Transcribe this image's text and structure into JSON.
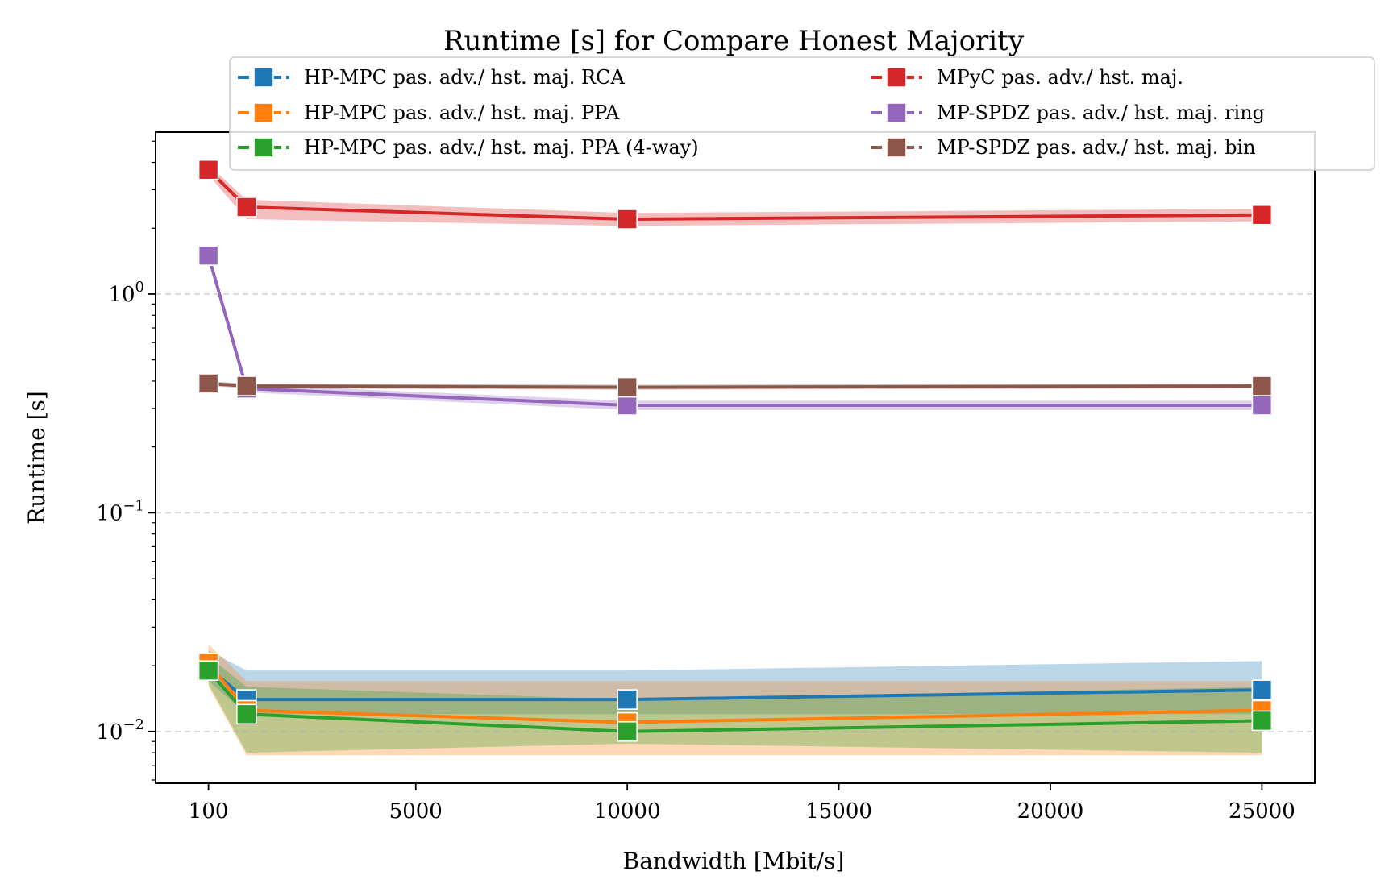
{
  "chart_data": {
    "type": "line",
    "title": "Runtime [s] for Compare Honest Majority",
    "xlabel": "Bandwidth [Mbit/s]",
    "ylabel": "Runtime [s]",
    "yscale": "log",
    "xlim": [
      -1150,
      26250
    ],
    "ylim": [
      0.0058,
      5.5
    ],
    "xticks": [
      100,
      5000,
      10000,
      15000,
      20000,
      25000
    ],
    "xtick_labels": [
      "100",
      "5000",
      "10000",
      "15000",
      "20000",
      "25000"
    ],
    "yticks": [
      0.01,
      0.1,
      1
    ],
    "ytick_labels": [
      {
        "base": "10",
        "exp": "−2"
      },
      {
        "base": "10",
        "exp": "−1"
      },
      {
        "base": "10",
        "exp": "0"
      }
    ],
    "grid": "y-major-dashed",
    "legend": "top, two columns",
    "x": [
      100,
      1000,
      10000,
      25000
    ],
    "series": [
      {
        "name": "HP-MPC pas. adv./ hst. maj. RCA",
        "color": "#1f77b4",
        "values": [
          0.0195,
          0.014,
          0.014,
          0.0155
        ],
        "lower": [
          0.017,
          0.012,
          0.012,
          0.012
        ],
        "upper": [
          0.0235,
          0.019,
          0.019,
          0.021
        ]
      },
      {
        "name": "HP-MPC pas. adv./ hst. maj. PPA",
        "color": "#ff7f0e",
        "values": [
          0.0205,
          0.0125,
          0.011,
          0.0125
        ],
        "lower": [
          0.016,
          0.0078,
          0.0078,
          0.0078
        ],
        "upper": [
          0.025,
          0.017,
          0.017,
          0.017
        ]
      },
      {
        "name": "HP-MPC pas. adv./ hst. maj. PPA (4-way)",
        "color": "#2ca02c",
        "values": [
          0.019,
          0.012,
          0.01,
          0.0112
        ],
        "lower": [
          0.0165,
          0.008,
          0.0088,
          0.008
        ],
        "upper": [
          0.022,
          0.016,
          0.014,
          0.016
        ]
      },
      {
        "name": "MPyC pas. adv./ hst. maj.",
        "color": "#d62728",
        "values": [
          3.7,
          2.5,
          2.2,
          2.3
        ],
        "lower": [
          3.5,
          2.2,
          2.05,
          2.15
        ],
        "upper": [
          3.9,
          2.7,
          2.35,
          2.45
        ]
      },
      {
        "name": "MP-SPDZ pas. adv./ hst. maj. ring",
        "color": "#9467bd",
        "values": [
          1.5,
          0.37,
          0.31,
          0.31
        ],
        "lower": [
          1.45,
          0.355,
          0.295,
          0.295
        ],
        "upper": [
          1.55,
          0.385,
          0.325,
          0.325
        ]
      },
      {
        "name": "MP-SPDZ pas. adv./ hst. maj. bin",
        "color": "#8c564b",
        "values": [
          0.39,
          0.38,
          0.375,
          0.38
        ],
        "lower": [
          0.38,
          0.37,
          0.365,
          0.37
        ],
        "upper": [
          0.4,
          0.39,
          0.385,
          0.39
        ]
      }
    ]
  }
}
